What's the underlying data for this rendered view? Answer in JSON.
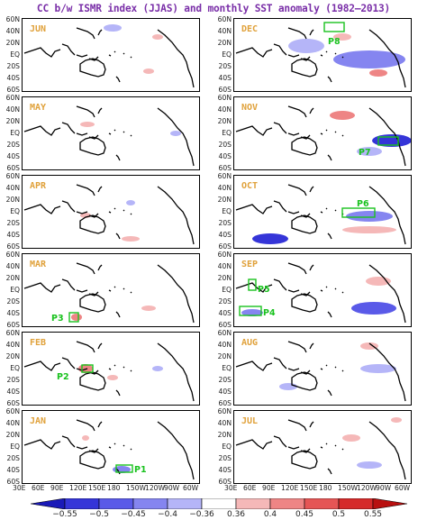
{
  "title": "CC b/w ISMR index (JJAS) and monthly SST anomaly (1982–2013)",
  "lat_labels": [
    "60N",
    "40N",
    "20N",
    "EQ",
    "20S",
    "40S",
    "60S"
  ],
  "lon_labels_left": [
    "30E",
    "60E",
    "90E",
    "120E",
    "150E",
    "180",
    "150W",
    "120W",
    "90W",
    "60W"
  ],
  "lon_labels_right": [
    "30E",
    "60E",
    "90E",
    "120E",
    "150E",
    "180",
    "150W",
    "120W",
    "90W",
    "60W"
  ],
  "panels_left": [
    {
      "month": "JUN",
      "box_label": ""
    },
    {
      "month": "MAY",
      "box_label": ""
    },
    {
      "month": "APR",
      "box_label": ""
    },
    {
      "month": "MAR",
      "box_label": "P3"
    },
    {
      "month": "FEB",
      "box_label": "P2"
    },
    {
      "month": "JAN",
      "box_label": "P1"
    }
  ],
  "panels_right": [
    {
      "month": "DEC",
      "box_label": "P8"
    },
    {
      "month": "NOV",
      "box_label": "P7"
    },
    {
      "month": "OCT",
      "box_label": "P6"
    },
    {
      "month": "SEP",
      "box_label": "P5",
      "box_label_2": "P4"
    },
    {
      "month": "AUG",
      "box_label": ""
    },
    {
      "month": "JUL",
      "box_label": ""
    }
  ],
  "colorbar": {
    "labels": [
      "−0.55",
      "−0.5",
      "−0.45",
      "−0.4",
      "−0.36",
      "0.36",
      "0.4",
      "0.45",
      "0.5",
      "0.55"
    ],
    "colors": [
      "#1a1ab8",
      "#3535d8",
      "#5a5ae8",
      "#8585f0",
      "#b5b5f8",
      "#ffffff",
      "#f5b8b8",
      "#ee8585",
      "#e55555",
      "#d52a2a",
      "#b81010"
    ]
  },
  "colors": {
    "title": "#7a2fa8",
    "month": "#e0a13a",
    "box": "#19c21e"
  }
}
